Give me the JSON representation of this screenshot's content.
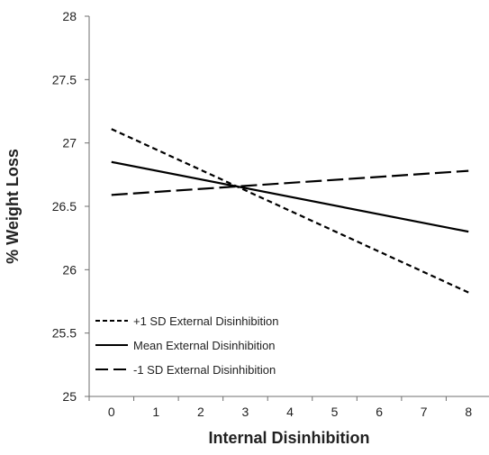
{
  "chart_data": {
    "type": "line",
    "title": "",
    "xlabel": "Internal Disinhibition",
    "ylabel": "% Weight Loss",
    "x": [
      0,
      8
    ],
    "xticks": [
      "0",
      "1",
      "2",
      "3",
      "4",
      "5",
      "6",
      "7",
      "8"
    ],
    "yticks": [
      "25",
      "25.5",
      "26",
      "26.5",
      "27",
      "27.5",
      "28"
    ],
    "xlim": [
      -0.5,
      8.5
    ],
    "ylim": [
      25,
      28
    ],
    "grid": false,
    "legend_position": "bottom-left",
    "series": [
      {
        "name": "+1 SD External Disinhibition",
        "style": "short-dash",
        "values": [
          27.11,
          25.82
        ]
      },
      {
        "name": "Mean External Disinhibition",
        "style": "solid",
        "values": [
          26.85,
          26.3
        ]
      },
      {
        "name": "-1 SD External Disinhibition",
        "style": "long-dash",
        "values": [
          26.59,
          26.78
        ]
      }
    ]
  }
}
